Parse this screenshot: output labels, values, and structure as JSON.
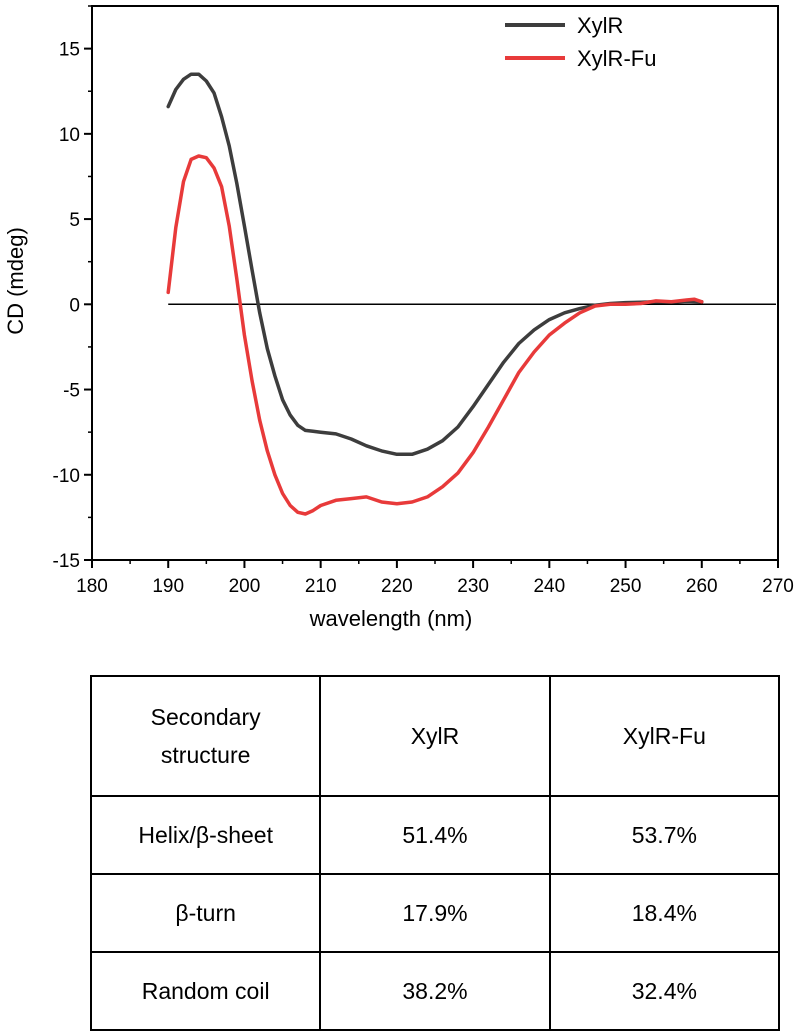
{
  "chart_data": {
    "type": "line",
    "xlabel": "wavelength (nm)",
    "ylabel": "CD (mdeg)",
    "xlim": [
      180,
      270
    ],
    "ylim": [
      -15,
      17.5
    ],
    "xticks": [
      180,
      190,
      200,
      210,
      220,
      230,
      240,
      250,
      260,
      270
    ],
    "yticks": [
      -15,
      -10,
      -5,
      0,
      5,
      10,
      15
    ],
    "legend_position": "top-right",
    "zero_line": true,
    "series": [
      {
        "name": "XylR",
        "color": "#3d3d3d",
        "x": [
          190,
          191,
          192,
          193,
          194,
          195,
          196,
          197,
          198,
          199,
          200,
          201,
          202,
          203,
          204,
          205,
          206,
          207,
          208,
          209,
          210,
          212,
          214,
          216,
          218,
          220,
          222,
          224,
          226,
          228,
          230,
          232,
          234,
          236,
          238,
          240,
          242,
          244,
          246,
          248,
          250,
          252,
          254,
          256,
          258,
          260
        ],
        "y": [
          11.6,
          12.6,
          13.2,
          13.5,
          13.5,
          13.1,
          12.4,
          11.0,
          9.3,
          7.1,
          4.6,
          2.0,
          -0.5,
          -2.6,
          -4.2,
          -5.6,
          -6.5,
          -7.1,
          -7.4,
          -7.45,
          -7.5,
          -7.6,
          -7.9,
          -8.3,
          -8.6,
          -8.8,
          -8.8,
          -8.5,
          -8.0,
          -7.2,
          -6.0,
          -4.7,
          -3.4,
          -2.3,
          -1.5,
          -0.9,
          -0.5,
          -0.25,
          -0.05,
          0.05,
          0.1,
          0.12,
          0.15,
          0.13,
          0.18,
          0.15
        ]
      },
      {
        "name": "XylR-Fu",
        "color": "#e83a3a",
        "x": [
          190,
          191,
          192,
          193,
          194,
          195,
          196,
          197,
          198,
          199,
          200,
          201,
          202,
          203,
          204,
          205,
          206,
          207,
          208,
          209,
          210,
          212,
          214,
          216,
          218,
          220,
          222,
          224,
          226,
          228,
          230,
          232,
          234,
          236,
          238,
          240,
          242,
          244,
          246,
          248,
          250,
          252,
          254,
          256,
          258,
          259,
          260
        ],
        "y": [
          0.7,
          4.5,
          7.2,
          8.5,
          8.7,
          8.6,
          8.0,
          6.9,
          4.6,
          1.5,
          -1.8,
          -4.5,
          -6.8,
          -8.6,
          -10.0,
          -11.1,
          -11.8,
          -12.2,
          -12.3,
          -12.1,
          -11.8,
          -11.5,
          -11.4,
          -11.3,
          -11.6,
          -11.7,
          -11.6,
          -11.3,
          -10.7,
          -9.9,
          -8.7,
          -7.2,
          -5.6,
          -4.0,
          -2.8,
          -1.8,
          -1.1,
          -0.5,
          -0.1,
          0.0,
          0.0,
          0.05,
          0.2,
          0.15,
          0.25,
          0.3,
          0.15
        ]
      }
    ]
  },
  "table": {
    "header": {
      "col1_line1": "Secondary",
      "col1_line2": "structure",
      "col2": "XylR",
      "col3": "XylR-Fu"
    },
    "rows": [
      {
        "label": "Helix/β-sheet",
        "xylr": "51.4%",
        "xylr_fu": "53.7%"
      },
      {
        "label": "β-turn",
        "xylr": "17.9%",
        "xylr_fu": "18.4%"
      },
      {
        "label": "Random coil",
        "xylr": "38.2%",
        "xylr_fu": "32.4%"
      }
    ]
  }
}
